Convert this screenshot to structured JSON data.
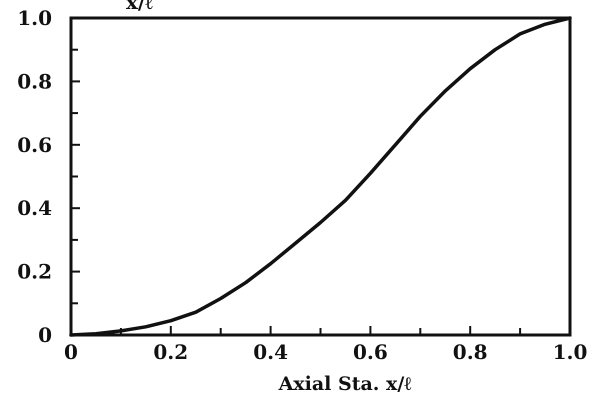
{
  "chart_data": {
    "type": "line",
    "title": "",
    "top_label_fragment": "x/ℓ",
    "xlabel": "Axial Sta. x/ℓ",
    "ylabel": "",
    "xlim": [
      0,
      1.0
    ],
    "ylim": [
      0,
      1.0
    ],
    "x_tick_labels": [
      "0",
      "0.2",
      "0.4",
      "0.6",
      "0.8",
      "1.0"
    ],
    "y_tick_labels": [
      "0",
      "0.2",
      "0.4",
      "0.6",
      "0.8",
      "1.0"
    ],
    "grid": false,
    "series": [
      {
        "x": [
          0,
          0.05,
          0.1,
          0.15,
          0.2,
          0.25,
          0.3,
          0.35,
          0.4,
          0.45,
          0.5,
          0.55,
          0.6,
          0.65,
          0.7,
          0.75,
          0.8,
          0.85,
          0.9,
          0.95,
          1.0
        ],
        "y": [
          0,
          0.004,
          0.013,
          0.026,
          0.045,
          0.072,
          0.115,
          0.165,
          0.225,
          0.29,
          0.355,
          0.425,
          0.51,
          0.6,
          0.69,
          0.77,
          0.84,
          0.9,
          0.95,
          0.98,
          1.0
        ]
      }
    ],
    "line_color": "#111111"
  }
}
